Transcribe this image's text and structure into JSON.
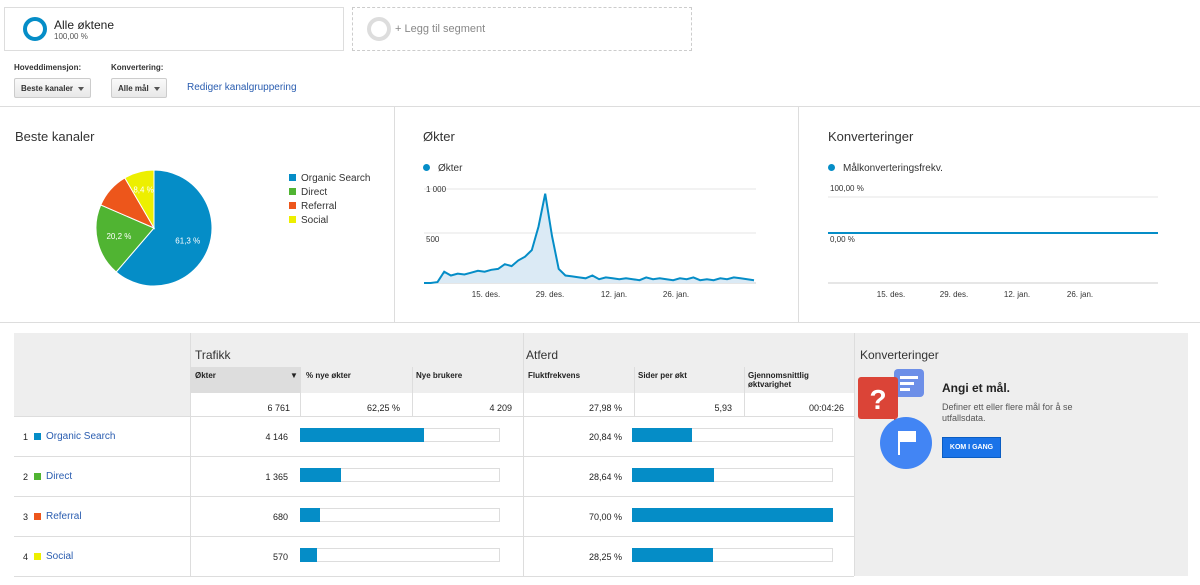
{
  "segments": {
    "active": {
      "title": "Alle øktene",
      "subtitle": "100,00 %"
    },
    "add_label": "+ Legg til segment"
  },
  "controls": {
    "primary_dimension_label": "Hoveddimensjon:",
    "primary_dimension_value": "Beste kanaler",
    "conversion_label": "Konvertering:",
    "conversion_value": "Alle mål",
    "edit_link": "Rediger kanalgruppering"
  },
  "colors": {
    "organic": "#058dc7",
    "direct": "#50b432",
    "referral": "#ed561b",
    "social": "#edef00",
    "accent": "#058dc7"
  },
  "pie_panel": {
    "title": "Beste kanaler",
    "legend": [
      "Organic Search",
      "Direct",
      "Referral",
      "Social"
    ]
  },
  "sessions_panel": {
    "title": "Økter",
    "legend": "Økter"
  },
  "conversions_panel": {
    "title": "Konverteringer",
    "legend": "Målkonverteringsfrekv."
  },
  "chart_data": [
    {
      "type": "pie",
      "categories": [
        "Organic Search",
        "Direct",
        "Referral",
        "Social"
      ],
      "values": [
        61.3,
        20.2,
        10.1,
        8.4
      ],
      "data_labels": [
        "61,3 %",
        "20,2 %",
        "",
        "8,4 %"
      ]
    },
    {
      "type": "area",
      "series": [
        {
          "name": "Økter",
          "values": [
            0,
            0,
            10,
            120,
            80,
            100,
            90,
            110,
            130,
            120,
            140,
            150,
            200,
            180,
            240,
            280,
            350,
            600,
            950,
            500,
            150,
            80,
            70,
            60,
            50,
            80,
            40,
            60,
            50,
            40,
            50,
            40,
            30,
            60,
            40,
            50,
            40,
            30,
            50,
            40,
            60,
            30,
            40,
            30,
            50,
            40,
            60,
            50,
            40,
            30
          ]
        }
      ],
      "x_tick_labels": [
        "15. des.",
        "29. des.",
        "12. jan.",
        "26. jan."
      ],
      "y_tick_labels": [
        "1 000",
        "500"
      ],
      "ylim": [
        0,
        1000
      ]
    },
    {
      "type": "line",
      "series": [
        {
          "name": "Målkonverteringsfrekv.",
          "values": [
            0,
            0,
            0,
            0,
            0,
            0,
            0,
            0
          ]
        }
      ],
      "x_tick_labels": [
        "15. des.",
        "29. des.",
        "12. jan.",
        "26. jan."
      ],
      "y_tick_labels": [
        "100,00 %",
        "0,00 %"
      ],
      "ylim": [
        0,
        100
      ]
    }
  ],
  "table": {
    "group_traffic": "Trafikk",
    "group_behavior": "Atferd",
    "group_conversions": "Konverteringer",
    "columns": [
      "Økter",
      "% nye økter",
      "Nye brukere",
      "Fluktfrekvens",
      "Sider per økt",
      "Gjennomsnittlig øktvarighet"
    ],
    "totals": [
      "6 761",
      "62,25 %",
      "4 209",
      "27,98 %",
      "5,93",
      "00:04:26"
    ],
    "rows": [
      {
        "index": "1",
        "name": "Organic Search",
        "sessions": "4 146",
        "sessions_pct": 61.3,
        "bounce": "20,84 %",
        "bounce_frac": 0.2977
      },
      {
        "index": "2",
        "name": "Direct",
        "sessions": "1 365",
        "sessions_pct": 20.2,
        "bounce": "28,64 %",
        "bounce_frac": 0.4091
      },
      {
        "index": "3",
        "name": "Referral",
        "sessions": "680",
        "sessions_pct": 10.1,
        "bounce": "70,00 %",
        "bounce_frac": 1.0
      },
      {
        "index": "4",
        "name": "Social",
        "sessions": "570",
        "sessions_pct": 8.4,
        "bounce": "28,25 %",
        "bounce_frac": 0.4036
      }
    ],
    "promo": {
      "title": "Angi et mål.",
      "text_line1": "Definer ett eller flere mål for å se",
      "text_line2": "utfallsdata.",
      "button": "KOM I GANG"
    }
  }
}
